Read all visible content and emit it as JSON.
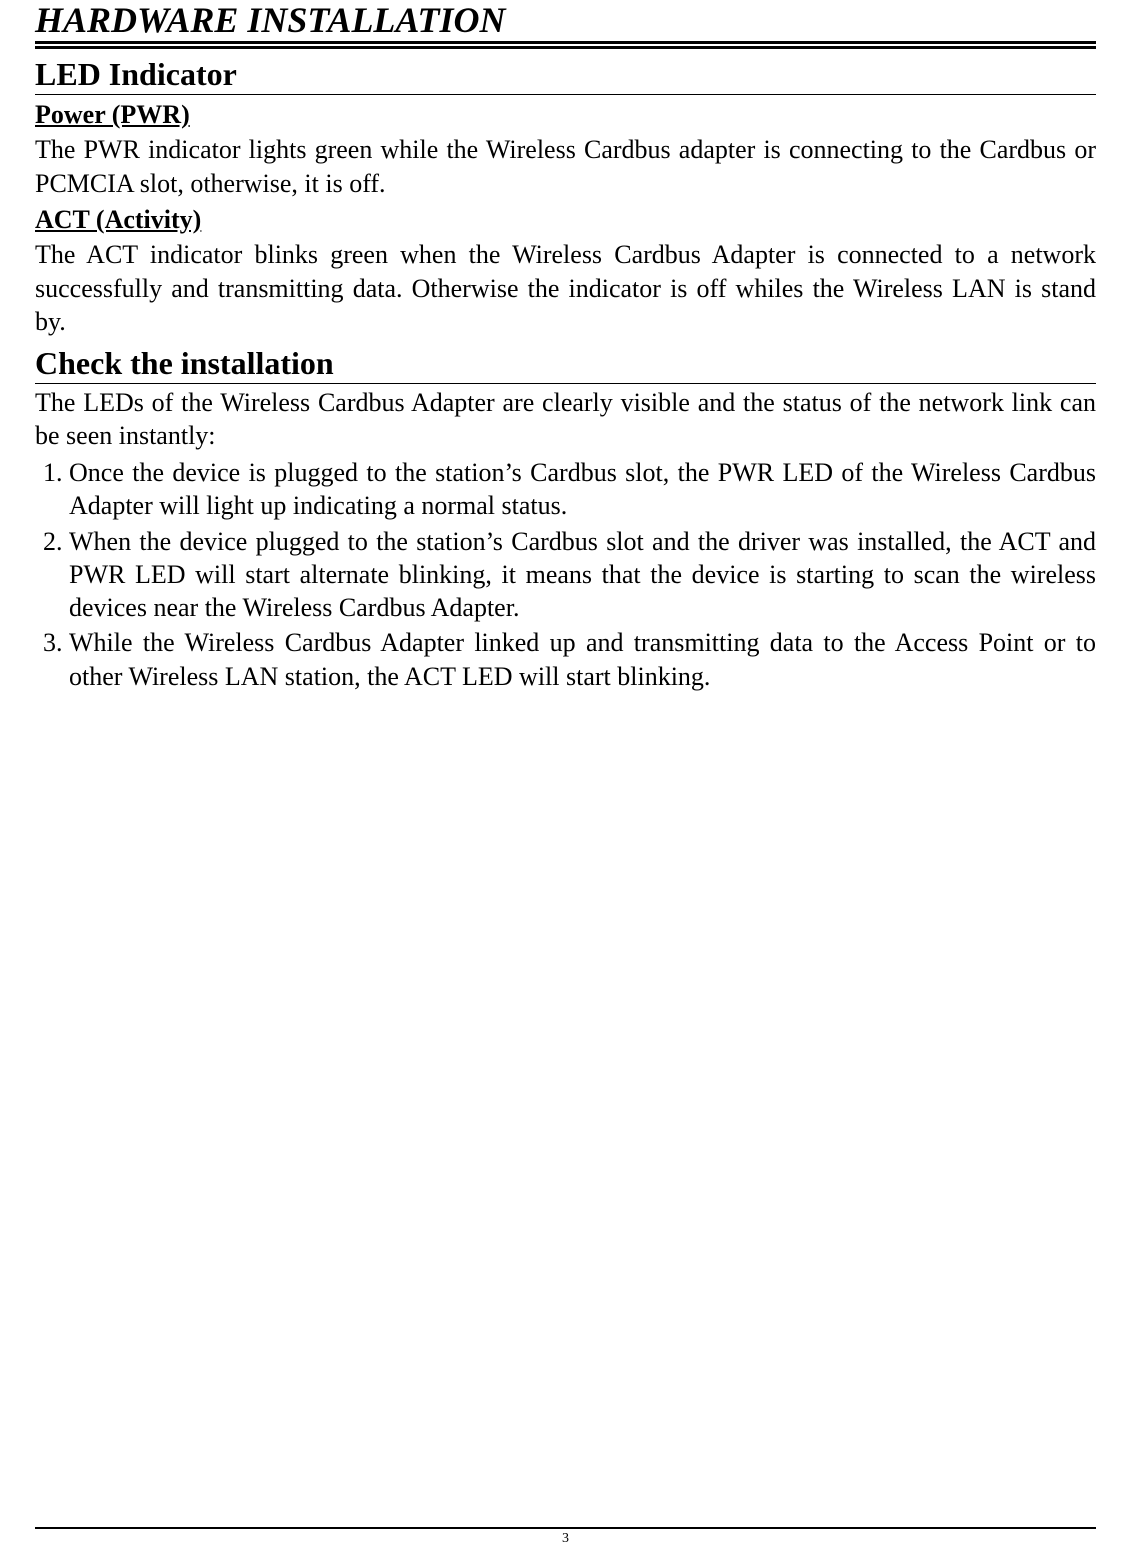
{
  "chapter_title": "HARDWARE INSTALLATION",
  "section_led": {
    "title": "LED Indicator",
    "pwr_head": "Power (PWR)",
    "pwr_body": "The PWR indicator lights green while the Wireless Cardbus adapter is connecting to the Cardbus or PCMCIA slot, otherwise, it is off.",
    "act_head": "ACT (Activity)",
    "act_body": "The ACT indicator blinks green when the Wireless Cardbus Adapter is connected to a network successfully and transmitting data. Otherwise the indicator is off whiles the Wireless LAN is stand by."
  },
  "section_check": {
    "title": "Check the installation",
    "intro": "The LEDs of the Wireless Cardbus Adapter are clearly visible and the status of the network link can be seen instantly:",
    "items": [
      "Once the device is plugged to the station’s Cardbus slot, the PWR LED of the Wireless Cardbus Adapter will light up indicating a normal status.",
      "When the device plugged to the station’s Cardbus slot and the driver was installed, the ACT and PWR LED will start alternate blinking, it means that the device is starting to scan the wireless devices near the Wireless Cardbus Adapter.",
      "While the Wireless Cardbus Adapter linked up and transmitting data to the Access Point or to other Wireless LAN station, the ACT LED will start blinking."
    ]
  },
  "page_number": "3"
}
